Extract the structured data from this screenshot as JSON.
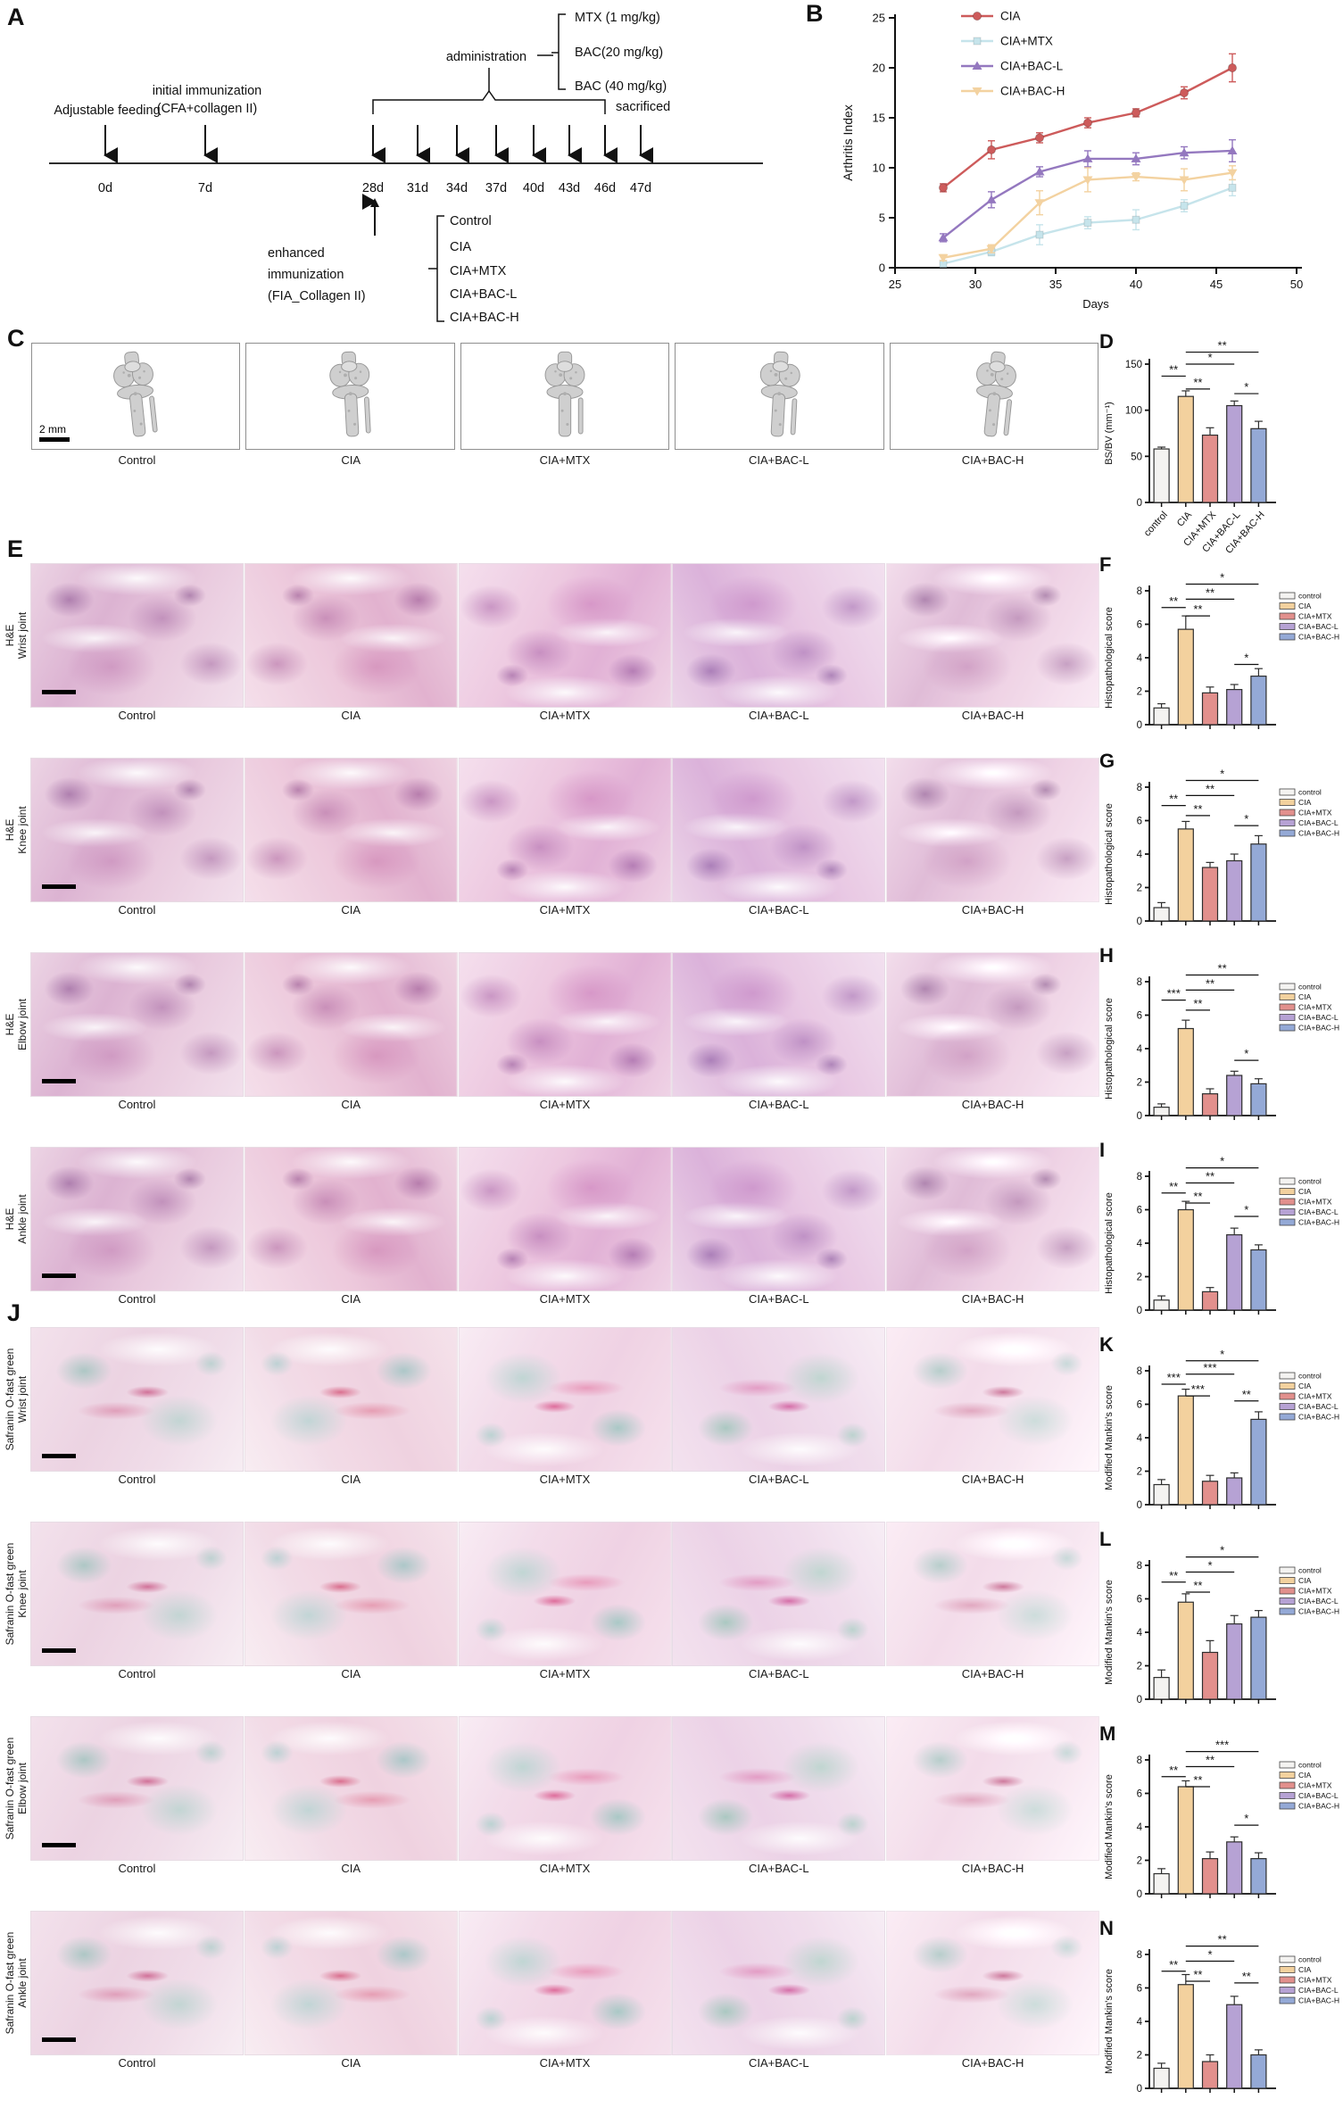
{
  "letters": {
    "A": "A",
    "B": "B",
    "C": "C",
    "D": "D",
    "E": "E",
    "F": "F",
    "G": "G",
    "H": "H",
    "I": "I",
    "J": "J",
    "K": "K",
    "L": "L",
    "M": "M",
    "N": "N"
  },
  "groups_display": [
    "Control",
    "CIA",
    "CIA+MTX",
    "CIA+BAC-L",
    "CIA+BAC-H"
  ],
  "legend_labels": [
    "control",
    "CIA",
    "CIA+MTX",
    "CIA+BAC-L",
    "CIA+BAC-H"
  ],
  "group_colors": {
    "control": "#f4f3f1",
    "CIA": "#f3d19e",
    "CIA+MTX": "#e2908d",
    "CIA+BAC-L": "#b6a2d4",
    "CIA+BAC-H": "#94a9d6"
  },
  "panelA": {
    "adjustable_feeding": "Adjustable feeding",
    "initial_immunization_lines": [
      "initial immunization",
      "(CFA+collagen II)"
    ],
    "administration": "administration",
    "drugs": [
      "MTX (1 mg/kg)",
      "BAC(20 mg/kg)",
      "BAC (40 mg/kg)"
    ],
    "sacrificed": "sacrificed",
    "days": [
      "0d",
      "7d",
      "28d",
      "31d",
      "34d",
      "37d",
      "40d",
      "43d",
      "46d",
      "47d"
    ],
    "enhanced_lines": [
      "enhanced",
      "immunization",
      "(FIA_Collagen II)"
    ],
    "groups": [
      "Control",
      "CIA",
      "CIA+MTX",
      "CIA+BAC-L",
      "CIA+BAC-H"
    ]
  },
  "panelC": {
    "scale_bar_label": "2 mm"
  },
  "histo_rows": [
    {
      "stain": "H&E",
      "joint": "Wrist joint",
      "type": "he"
    },
    {
      "stain": "H&E",
      "joint": "Knee joint",
      "type": "he"
    },
    {
      "stain": "H&E",
      "joint": "Elbow joint",
      "type": "he"
    },
    {
      "stain": "H&E",
      "joint": "Ankle joint",
      "type": "he"
    },
    {
      "stain": "Safranin O-fast green",
      "joint": "Wrist joint",
      "type": "sfg"
    },
    {
      "stain": "Safranin O-fast green",
      "joint": "Knee joint",
      "type": "sfg"
    },
    {
      "stain": "Safranin O-fast green",
      "joint": "Elbow joint",
      "type": "sfg"
    },
    {
      "stain": "Safranin O-fast green",
      "joint": "Ankle joint",
      "type": "sfg"
    }
  ],
  "chart_data": [
    {
      "id": "B",
      "letter": "B",
      "type": "line",
      "xlabel": "Days",
      "ylabel": "Arthritis Index",
      "xlim": [
        25,
        50
      ],
      "ylim": [
        0,
        25
      ],
      "xticks": [
        25,
        30,
        35,
        40,
        45,
        50
      ],
      "yticks": [
        0,
        5,
        10,
        15,
        20,
        25
      ],
      "x": [
        28,
        31,
        34,
        37,
        40,
        43,
        46
      ],
      "legend_position": "top-left-inside",
      "series": [
        {
          "name": "CIA",
          "color": "#cd5b5b",
          "marker": "circle",
          "values": [
            8,
            11.8,
            13,
            14.5,
            15.5,
            17.5,
            20
          ],
          "errors": [
            0.4,
            0.9,
            0.5,
            0.5,
            0.4,
            0.6,
            1.4
          ]
        },
        {
          "name": "CIA+MTX",
          "color": "#c6e4eb",
          "marker": "square",
          "values": [
            0.4,
            1.6,
            3.3,
            4.5,
            4.8,
            6.2,
            8
          ],
          "errors": [
            0.3,
            0.4,
            1.0,
            0.6,
            1.0,
            0.6,
            0.8
          ]
        },
        {
          "name": "CIA+BAC-L",
          "color": "#9478bf",
          "marker": "triangle-up",
          "values": [
            3,
            6.8,
            9.6,
            10.9,
            10.9,
            11.5,
            11.7
          ],
          "errors": [
            0.4,
            0.8,
            0.5,
            0.8,
            0.6,
            0.6,
            1.1
          ]
        },
        {
          "name": "CIA+BAC-H",
          "color": "#f3d2a0",
          "marker": "triangle-down",
          "values": [
            1,
            1.9,
            6.5,
            8.8,
            9.1,
            8.8,
            9.5
          ],
          "errors": [
            0.3,
            0.4,
            1.2,
            1.2,
            0.4,
            1.1,
            0.7
          ]
        }
      ]
    },
    {
      "id": "D",
      "letter": "D",
      "type": "bar",
      "ylabel": "BS/BV (mm⁻¹)",
      "ylim": [
        0,
        150
      ],
      "yticks": [
        0,
        50,
        100,
        150
      ],
      "categories": [
        "control",
        "CIA",
        "CIA+MTX",
        "CIA+BAC-L",
        "CIA+BAC-H"
      ],
      "values": [
        58,
        115,
        73,
        105,
        80
      ],
      "errors": [
        2,
        6,
        8,
        5,
        8
      ],
      "legend": false,
      "xlabels": true,
      "sig": [
        {
          "a": 0,
          "b": 1,
          "stars": "**",
          "y": 137
        },
        {
          "a": 1,
          "b": 2,
          "stars": "**",
          "y": 123
        },
        {
          "a": 1,
          "b": 3,
          "stars": "*",
          "y": 150
        },
        {
          "a": 1,
          "b": 4,
          "stars": "**",
          "y": 163
        },
        {
          "a": 3,
          "b": 4,
          "stars": "*",
          "y": 118
        }
      ]
    },
    {
      "id": "F",
      "letter": "F",
      "type": "bar",
      "ylabel": "Histopathological score",
      "ylim": [
        0,
        8
      ],
      "yticks": [
        0,
        2,
        4,
        6,
        8
      ],
      "categories": [
        "control",
        "CIA",
        "CIA+MTX",
        "CIA+BAC-L",
        "CIA+BAC-H"
      ],
      "values": [
        1.0,
        5.7,
        1.9,
        2.1,
        2.9
      ],
      "errors": [
        0.25,
        0.8,
        0.35,
        0.3,
        0.45
      ],
      "legend": true,
      "xlabels": false,
      "sig": [
        {
          "a": 0,
          "b": 1,
          "stars": "**",
          "y": 7.0
        },
        {
          "a": 1,
          "b": 2,
          "stars": "**",
          "y": 6.5
        },
        {
          "a": 1,
          "b": 3,
          "stars": "**",
          "y": 7.5
        },
        {
          "a": 1,
          "b": 4,
          "stars": "*",
          "y": 8.4
        },
        {
          "a": 3,
          "b": 4,
          "stars": "*",
          "y": 3.6
        }
      ]
    },
    {
      "id": "G",
      "letter": "G",
      "type": "bar",
      "ylabel": "Histopathological score",
      "ylim": [
        0,
        8
      ],
      "yticks": [
        0,
        2,
        4,
        6,
        8
      ],
      "categories": [
        "control",
        "CIA",
        "CIA+MTX",
        "CIA+BAC-L",
        "CIA+BAC-H"
      ],
      "values": [
        0.8,
        5.5,
        3.2,
        3.6,
        4.6
      ],
      "errors": [
        0.3,
        0.45,
        0.3,
        0.4,
        0.5
      ],
      "legend": true,
      "xlabels": false,
      "sig": [
        {
          "a": 0,
          "b": 1,
          "stars": "**",
          "y": 6.9
        },
        {
          "a": 1,
          "b": 2,
          "stars": "**",
          "y": 6.3
        },
        {
          "a": 1,
          "b": 3,
          "stars": "**",
          "y": 7.5
        },
        {
          "a": 1,
          "b": 4,
          "stars": "*",
          "y": 8.4
        },
        {
          "a": 3,
          "b": 4,
          "stars": "*",
          "y": 5.7
        }
      ]
    },
    {
      "id": "H",
      "letter": "H",
      "type": "bar",
      "ylabel": "Histopathological score",
      "ylim": [
        0,
        8
      ],
      "yticks": [
        0,
        2,
        4,
        6,
        8
      ],
      "categories": [
        "control",
        "CIA",
        "CIA+MTX",
        "CIA+BAC-L",
        "CIA+BAC-H"
      ],
      "values": [
        0.5,
        5.2,
        1.3,
        2.4,
        1.9
      ],
      "errors": [
        0.2,
        0.5,
        0.3,
        0.25,
        0.3
      ],
      "legend": true,
      "xlabels": false,
      "sig": [
        {
          "a": 0,
          "b": 1,
          "stars": "***",
          "y": 6.9
        },
        {
          "a": 1,
          "b": 2,
          "stars": "**",
          "y": 6.3
        },
        {
          "a": 1,
          "b": 3,
          "stars": "**",
          "y": 7.5
        },
        {
          "a": 1,
          "b": 4,
          "stars": "**",
          "y": 8.4
        },
        {
          "a": 3,
          "b": 4,
          "stars": "*",
          "y": 3.3
        }
      ]
    },
    {
      "id": "I",
      "letter": "I",
      "type": "bar",
      "ylabel": "Histopathological score",
      "ylim": [
        0,
        8
      ],
      "yticks": [
        0,
        2,
        4,
        6,
        8
      ],
      "categories": [
        "control",
        "CIA",
        "CIA+MTX",
        "CIA+BAC-L",
        "CIA+BAC-H"
      ],
      "values": [
        0.6,
        6.0,
        1.1,
        4.5,
        3.6
      ],
      "errors": [
        0.25,
        0.5,
        0.25,
        0.4,
        0.3
      ],
      "legend": true,
      "xlabels": false,
      "sig": [
        {
          "a": 0,
          "b": 1,
          "stars": "**",
          "y": 7.0
        },
        {
          "a": 1,
          "b": 2,
          "stars": "**",
          "y": 6.4
        },
        {
          "a": 1,
          "b": 3,
          "stars": "**",
          "y": 7.6
        },
        {
          "a": 1,
          "b": 4,
          "stars": "*",
          "y": 8.5
        },
        {
          "a": 3,
          "b": 4,
          "stars": "*",
          "y": 5.6
        }
      ]
    },
    {
      "id": "K",
      "letter": "K",
      "type": "bar",
      "ylabel": "Modified Mankin's score",
      "ylim": [
        0,
        8
      ],
      "yticks": [
        0,
        2,
        4,
        6,
        8
      ],
      "categories": [
        "control",
        "CIA",
        "CIA+MTX",
        "CIA+BAC-L",
        "CIA+BAC-H"
      ],
      "values": [
        1.2,
        6.5,
        1.4,
        1.6,
        5.1
      ],
      "errors": [
        0.3,
        0.4,
        0.35,
        0.3,
        0.45
      ],
      "legend": true,
      "xlabels": false,
      "sig": [
        {
          "a": 0,
          "b": 1,
          "stars": "***",
          "y": 7.2
        },
        {
          "a": 1,
          "b": 2,
          "stars": "***",
          "y": 6.5
        },
        {
          "a": 1,
          "b": 3,
          "stars": "***",
          "y": 7.8
        },
        {
          "a": 1,
          "b": 4,
          "stars": "*",
          "y": 8.6
        },
        {
          "a": 3,
          "b": 4,
          "stars": "**",
          "y": 6.2
        }
      ]
    },
    {
      "id": "L",
      "letter": "L",
      "type": "bar",
      "ylabel": "Modified Mankin's score",
      "ylim": [
        0,
        8
      ],
      "yticks": [
        0,
        2,
        4,
        6,
        8
      ],
      "categories": [
        "control",
        "CIA",
        "CIA+MTX",
        "CIA+BAC-L",
        "CIA+BAC-H"
      ],
      "values": [
        1.3,
        5.8,
        2.8,
        4.5,
        4.9
      ],
      "errors": [
        0.45,
        0.5,
        0.7,
        0.5,
        0.4
      ],
      "legend": true,
      "xlabels": false,
      "sig": [
        {
          "a": 0,
          "b": 1,
          "stars": "**",
          "y": 7.0
        },
        {
          "a": 1,
          "b": 2,
          "stars": "**",
          "y": 6.4
        },
        {
          "a": 1,
          "b": 3,
          "stars": "*",
          "y": 7.6
        },
        {
          "a": 1,
          "b": 4,
          "stars": "*",
          "y": 8.5
        }
      ]
    },
    {
      "id": "M",
      "letter": "M",
      "type": "bar",
      "ylabel": "Modified Mankin's score",
      "ylim": [
        0,
        8
      ],
      "yticks": [
        0,
        2,
        4,
        6,
        8
      ],
      "categories": [
        "control",
        "CIA",
        "CIA+MTX",
        "CIA+BAC-L",
        "CIA+BAC-H"
      ],
      "values": [
        1.2,
        6.4,
        2.1,
        3.1,
        2.1
      ],
      "errors": [
        0.3,
        0.35,
        0.4,
        0.3,
        0.35
      ],
      "legend": true,
      "xlabels": false,
      "sig": [
        {
          "a": 0,
          "b": 1,
          "stars": "**",
          "y": 7.0
        },
        {
          "a": 1,
          "b": 2,
          "stars": "**",
          "y": 6.4
        },
        {
          "a": 1,
          "b": 3,
          "stars": "**",
          "y": 7.6
        },
        {
          "a": 1,
          "b": 4,
          "stars": "***",
          "y": 8.5
        },
        {
          "a": 3,
          "b": 4,
          "stars": "*",
          "y": 4.1
        }
      ]
    },
    {
      "id": "N",
      "letter": "N",
      "type": "bar",
      "ylabel": "Modified Mankin's score",
      "ylim": [
        0,
        8
      ],
      "yticks": [
        0,
        2,
        4,
        6,
        8
      ],
      "categories": [
        "control",
        "CIA",
        "CIA+MTX",
        "CIA+BAC-L",
        "CIA+BAC-H"
      ],
      "values": [
        1.2,
        6.2,
        1.6,
        5.0,
        2.0
      ],
      "errors": [
        0.3,
        0.6,
        0.4,
        0.5,
        0.3
      ],
      "legend": true,
      "xlabels": false,
      "sig": [
        {
          "a": 0,
          "b": 1,
          "stars": "**",
          "y": 7.0
        },
        {
          "a": 1,
          "b": 2,
          "stars": "**",
          "y": 6.4
        },
        {
          "a": 1,
          "b": 3,
          "stars": "*",
          "y": 7.6
        },
        {
          "a": 1,
          "b": 4,
          "stars": "**",
          "y": 8.5
        },
        {
          "a": 3,
          "b": 4,
          "stars": "**",
          "y": 6.3
        }
      ]
    }
  ]
}
